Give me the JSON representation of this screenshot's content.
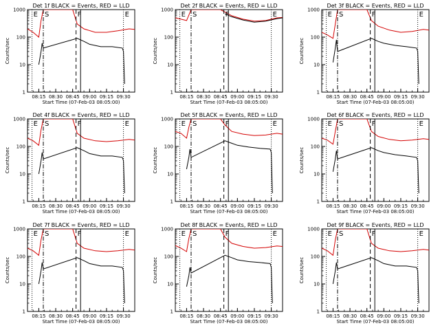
{
  "panel_titles": [
    "Det 1f BLACK = Events, RED = LLD",
    "Det 2f BLACK = Events, RED = LLD",
    "Det 3f BLACK = Events, RED = LLD",
    "Det 4f BLACK = Events, RED = LLD",
    "Det 5f BLACK = Events, RED = LLD",
    "Det 6f BLACK = Events, RED = LLD",
    "Det 7f BLACK = Events, RED = LLD",
    "Det 8f BLACK = Events, RED = LLD",
    "Det 9f BLACK = Events, RED = LLD"
  ],
  "ylabel": "Counts/sec",
  "xlabel": "Start Time (07-Feb-03 08:05:00)",
  "x_tick_labels": [
    "08:15",
    "08:30",
    "08:45",
    "09:00",
    "09:15",
    "09:30"
  ],
  "y_tick_labels": [
    "1",
    "10",
    "100",
    "1000"
  ],
  "marker_labels": [
    "E",
    "S",
    "F",
    "E"
  ],
  "colors": {
    "events": "#000000",
    "lld": "#d40000"
  },
  "chart_data": [
    {
      "type": "line",
      "title": "Det 1f BLACK = Events, RED = LLD",
      "xlabel": "Start Time (07-Feb-03 08:05:00)",
      "ylabel": "Counts/sec",
      "xlim": [
        "08:05",
        "09:40"
      ],
      "ylim": [
        1,
        1000
      ],
      "log_y": true,
      "markers": [
        {
          "label": "E",
          "time": "08:09",
          "style": "dotted"
        },
        {
          "label": "S",
          "time": "08:19",
          "style": "dashdot"
        },
        {
          "label": "F",
          "time": "08:48",
          "style": "dashed"
        },
        {
          "label": "E",
          "time": "09:30",
          "style": "dotted"
        }
      ],
      "series": [
        {
          "name": "LLD",
          "color": "red",
          "x": [
            "08:05",
            "08:10",
            "08:15",
            "08:17",
            "08:19",
            "08:21",
            "08:45",
            "08:49",
            "08:55",
            "09:05",
            "09:15",
            "09:25",
            "09:35",
            "09:40"
          ],
          "y": [
            200,
            150,
            100,
            400,
            1000,
            1000,
            1000,
            300,
            200,
            150,
            150,
            170,
            200,
            190
          ]
        },
        {
          "name": "Events",
          "color": "black",
          "x": [
            "08:15",
            "08:17",
            "08:18",
            "08:19",
            "08:49",
            "08:55",
            "09:00",
            "09:10",
            "09:20",
            "09:29",
            "09:30",
            "09:31"
          ],
          "y": [
            10,
            30,
            60,
            40,
            90,
            70,
            55,
            45,
            45,
            40,
            30,
            2
          ]
        }
      ]
    },
    {
      "type": "line",
      "title": "Det 2f BLACK = Events, RED = LLD",
      "xlabel": "Start Time (07-Feb-03 08:05:00)",
      "ylabel": "Counts/sec",
      "xlim": [
        "08:05",
        "09:40"
      ],
      "ylim": [
        1,
        1000
      ],
      "log_y": true,
      "markers": [
        {
          "label": "E",
          "time": "08:09",
          "style": "dotted"
        },
        {
          "label": "S",
          "time": "08:19",
          "style": "dashdot"
        },
        {
          "label": "F",
          "time": "08:48",
          "style": "dashed"
        },
        {
          "label": "E",
          "time": "09:30",
          "style": "dotted"
        }
      ],
      "series": [
        {
          "name": "LLD",
          "color": "red",
          "x": [
            "08:05",
            "08:10",
            "08:15",
            "08:19",
            "08:21",
            "08:45",
            "08:55",
            "09:05",
            "09:15",
            "09:25",
            "09:35",
            "09:40"
          ],
          "y": [
            500,
            450,
            400,
            1000,
            1000,
            1000,
            600,
            450,
            380,
            400,
            500,
            520
          ]
        },
        {
          "name": "Events",
          "color": "black",
          "x": [
            "08:49",
            "08:55",
            "09:05",
            "09:15",
            "09:25",
            "09:35",
            "09:40"
          ],
          "y": [
            700,
            550,
            420,
            350,
            380,
            470,
            500
          ]
        }
      ]
    },
    {
      "type": "line",
      "title": "Det 3f BLACK = Events, RED = LLD",
      "xlabel": "Start Time (07-Feb-03 08:05:00)",
      "ylabel": "Counts/sec",
      "xlim": [
        "08:05",
        "09:40"
      ],
      "ylim": [
        1,
        1000
      ],
      "log_y": true,
      "markers": [
        {
          "label": "E",
          "time": "08:09",
          "style": "dotted"
        },
        {
          "label": "S",
          "time": "08:19",
          "style": "dashdot"
        },
        {
          "label": "F",
          "time": "08:48",
          "style": "dashed"
        },
        {
          "label": "E",
          "time": "09:30",
          "style": "dotted"
        }
      ],
      "series": [
        {
          "name": "LLD",
          "color": "red",
          "x": [
            "08:05",
            "08:10",
            "08:15",
            "08:17",
            "08:19",
            "08:21",
            "08:45",
            "08:49",
            "08:55",
            "09:05",
            "09:15",
            "09:25",
            "09:35",
            "09:40"
          ],
          "y": [
            150,
            120,
            90,
            300,
            1000,
            1000,
            1000,
            400,
            250,
            180,
            150,
            160,
            190,
            180
          ]
        },
        {
          "name": "Events",
          "color": "black",
          "x": [
            "08:15",
            "08:17",
            "08:18",
            "08:19",
            "08:49",
            "08:55",
            "09:00",
            "09:10",
            "09:20",
            "09:29",
            "09:30",
            "09:31"
          ],
          "y": [
            12,
            40,
            80,
            30,
            90,
            70,
            60,
            50,
            45,
            40,
            30,
            2
          ]
        }
      ]
    },
    {
      "type": "line",
      "title": "Det 4f BLACK = Events, RED = LLD",
      "xlabel": "Start Time (07-Feb-03 08:05:00)",
      "ylabel": "Counts/sec",
      "xlim": [
        "08:05",
        "09:40"
      ],
      "ylim": [
        1,
        1000
      ],
      "log_y": true,
      "markers": [
        {
          "label": "E",
          "time": "08:09",
          "style": "dotted"
        },
        {
          "label": "S",
          "time": "08:19",
          "style": "dashdot"
        },
        {
          "label": "F",
          "time": "08:48",
          "style": "dashed"
        },
        {
          "label": "E",
          "time": "09:30",
          "style": "dotted"
        }
      ],
      "series": [
        {
          "name": "LLD",
          "color": "red",
          "x": [
            "08:05",
            "08:10",
            "08:15",
            "08:17",
            "08:19",
            "08:21",
            "08:45",
            "08:49",
            "08:55",
            "09:05",
            "09:15",
            "09:25",
            "09:35",
            "09:40"
          ],
          "y": [
            200,
            160,
            110,
            400,
            1000,
            1000,
            1000,
            300,
            200,
            160,
            150,
            160,
            180,
            170
          ]
        },
        {
          "name": "Events",
          "color": "black",
          "x": [
            "08:15",
            "08:17",
            "08:18",
            "08:19",
            "08:49",
            "08:55",
            "09:00",
            "09:10",
            "09:20",
            "09:29",
            "09:30",
            "09:31"
          ],
          "y": [
            10,
            30,
            60,
            35,
            90,
            70,
            55,
            45,
            45,
            40,
            30,
            2
          ]
        }
      ]
    },
    {
      "type": "line",
      "title": "Det 5f BLACK = Events, RED = LLD",
      "xlabel": "Start Time (07-Feb-03 08:05:00)",
      "ylabel": "Counts/sec",
      "xlim": [
        "08:05",
        "09:40"
      ],
      "ylim": [
        1,
        1000
      ],
      "log_y": true,
      "markers": [
        {
          "label": "E",
          "time": "08:09",
          "style": "dotted"
        },
        {
          "label": "S",
          "time": "08:19",
          "style": "dashdot"
        },
        {
          "label": "F",
          "time": "08:48",
          "style": "dashed"
        },
        {
          "label": "E",
          "time": "09:30",
          "style": "dotted"
        }
      ],
      "series": [
        {
          "name": "LLD",
          "color": "red",
          "x": [
            "08:05",
            "08:10",
            "08:15",
            "08:17",
            "08:19",
            "08:21",
            "08:45",
            "08:49",
            "08:55",
            "09:05",
            "09:15",
            "09:25",
            "09:35",
            "09:40"
          ],
          "y": [
            350,
            300,
            200,
            500,
            1000,
            1000,
            1000,
            600,
            350,
            280,
            250,
            260,
            300,
            280
          ]
        },
        {
          "name": "Events",
          "color": "black",
          "x": [
            "08:15",
            "08:17",
            "08:18",
            "08:19",
            "08:49",
            "08:55",
            "09:00",
            "09:10",
            "09:20",
            "09:29",
            "09:30",
            "09:31"
          ],
          "y": [
            15,
            40,
            80,
            40,
            160,
            130,
            110,
            95,
            85,
            80,
            60,
            2
          ]
        }
      ]
    },
    {
      "type": "line",
      "title": "Det 6f BLACK = Events, RED = LLD",
      "xlabel": "Start Time (07-Feb-03 08:05:00)",
      "ylabel": "Counts/sec",
      "xlim": [
        "08:05",
        "09:40"
      ],
      "ylim": [
        1,
        1000
      ],
      "log_y": true,
      "markers": [
        {
          "label": "E",
          "time": "08:09",
          "style": "dotted"
        },
        {
          "label": "S",
          "time": "08:19",
          "style": "dashdot"
        },
        {
          "label": "F",
          "time": "08:48",
          "style": "dashed"
        },
        {
          "label": "E",
          "time": "09:30",
          "style": "dotted"
        }
      ],
      "series": [
        {
          "name": "LLD",
          "color": "red",
          "x": [
            "08:05",
            "08:10",
            "08:15",
            "08:17",
            "08:19",
            "08:21",
            "08:45",
            "08:49",
            "08:55",
            "09:05",
            "09:15",
            "09:25",
            "09:35",
            "09:40"
          ],
          "y": [
            200,
            170,
            120,
            350,
            1000,
            1000,
            1000,
            350,
            230,
            180,
            160,
            170,
            190,
            180
          ]
        },
        {
          "name": "Events",
          "color": "black",
          "x": [
            "08:15",
            "08:17",
            "08:18",
            "08:19",
            "08:49",
            "08:55",
            "09:00",
            "09:10",
            "09:20",
            "09:29",
            "09:30",
            "09:31"
          ],
          "y": [
            12,
            35,
            70,
            35,
            90,
            70,
            60,
            50,
            45,
            40,
            30,
            2
          ]
        }
      ]
    },
    {
      "type": "line",
      "title": "Det 7f BLACK = Events, RED = LLD",
      "xlabel": "Start Time (07-Feb-03 08:05:00)",
      "ylabel": "Counts/sec",
      "xlim": [
        "08:05",
        "09:40"
      ],
      "ylim": [
        1,
        1000
      ],
      "log_y": true,
      "markers": [
        {
          "label": "E",
          "time": "08:09",
          "style": "dotted"
        },
        {
          "label": "S",
          "time": "08:19",
          "style": "dashdot"
        },
        {
          "label": "F",
          "time": "08:48",
          "style": "dashed"
        },
        {
          "label": "E",
          "time": "09:30",
          "style": "dotted"
        }
      ],
      "series": [
        {
          "name": "LLD",
          "color": "red",
          "x": [
            "08:05",
            "08:10",
            "08:15",
            "08:17",
            "08:19",
            "08:21",
            "08:45",
            "08:49",
            "08:55",
            "09:05",
            "09:15",
            "09:25",
            "09:35",
            "09:40"
          ],
          "y": [
            200,
            160,
            110,
            400,
            1000,
            1000,
            1000,
            300,
            200,
            160,
            150,
            160,
            180,
            170
          ]
        },
        {
          "name": "Events",
          "color": "black",
          "x": [
            "08:15",
            "08:17",
            "08:18",
            "08:19",
            "08:49",
            "08:55",
            "09:00",
            "09:10",
            "09:20",
            "09:29",
            "09:30",
            "09:31"
          ],
          "y": [
            10,
            30,
            60,
            35,
            90,
            70,
            55,
            45,
            45,
            40,
            30,
            2
          ]
        }
      ]
    },
    {
      "type": "line",
      "title": "Det 8f BLACK = Events, RED = LLD",
      "xlabel": "Start Time (07-Feb-03 08:05:00)",
      "ylabel": "Counts/sec",
      "xlim": [
        "08:05",
        "09:40"
      ],
      "ylim": [
        1,
        1000
      ],
      "log_y": true,
      "markers": [
        {
          "label": "E",
          "time": "08:09",
          "style": "dotted"
        },
        {
          "label": "S",
          "time": "08:19",
          "style": "dashdot"
        },
        {
          "label": "F",
          "time": "08:48",
          "style": "dashed"
        },
        {
          "label": "E",
          "time": "09:30",
          "style": "dotted"
        }
      ],
      "series": [
        {
          "name": "LLD",
          "color": "red",
          "x": [
            "08:05",
            "08:10",
            "08:15",
            "08:17",
            "08:19",
            "08:21",
            "08:45",
            "08:49",
            "08:55",
            "09:05",
            "09:15",
            "09:25",
            "09:35",
            "09:40"
          ],
          "y": [
            250,
            200,
            150,
            450,
            1000,
            1000,
            1000,
            500,
            300,
            230,
            200,
            210,
            240,
            230
          ]
        },
        {
          "name": "Events",
          "color": "black",
          "x": [
            "08:15",
            "08:17",
            "08:18",
            "08:19",
            "08:49",
            "08:55",
            "09:00",
            "09:10",
            "09:20",
            "09:29",
            "09:30",
            "09:31"
          ],
          "y": [
            8,
            20,
            40,
            25,
            110,
            90,
            75,
            65,
            60,
            55,
            40,
            2
          ]
        }
      ]
    },
    {
      "type": "line",
      "title": "Det 9f BLACK = Events, RED = LLD",
      "xlabel": "Start Time (07-Feb-03 08:05:00)",
      "ylabel": "Counts/sec",
      "xlim": [
        "08:05",
        "09:40"
      ],
      "ylim": [
        1,
        1000
      ],
      "log_y": true,
      "markers": [
        {
          "label": "E",
          "time": "08:09",
          "style": "dotted"
        },
        {
          "label": "S",
          "time": "08:19",
          "style": "dashdot"
        },
        {
          "label": "F",
          "time": "08:48",
          "style": "dashed"
        },
        {
          "label": "E",
          "time": "09:30",
          "style": "dotted"
        }
      ],
      "series": [
        {
          "name": "LLD",
          "color": "red",
          "x": [
            "08:05",
            "08:10",
            "08:15",
            "08:17",
            "08:19",
            "08:21",
            "08:45",
            "08:49",
            "08:55",
            "09:05",
            "09:15",
            "09:25",
            "09:35",
            "09:40"
          ],
          "y": [
            200,
            160,
            110,
            400,
            1000,
            1000,
            1000,
            300,
            200,
            160,
            150,
            160,
            180,
            170
          ]
        },
        {
          "name": "Events",
          "color": "black",
          "x": [
            "08:15",
            "08:17",
            "08:18",
            "08:19",
            "08:49",
            "08:55",
            "09:00",
            "09:10",
            "09:20",
            "09:29",
            "09:30",
            "09:31"
          ],
          "y": [
            10,
            30,
            60,
            35,
            90,
            70,
            55,
            45,
            45,
            40,
            30,
            2
          ]
        }
      ]
    }
  ]
}
